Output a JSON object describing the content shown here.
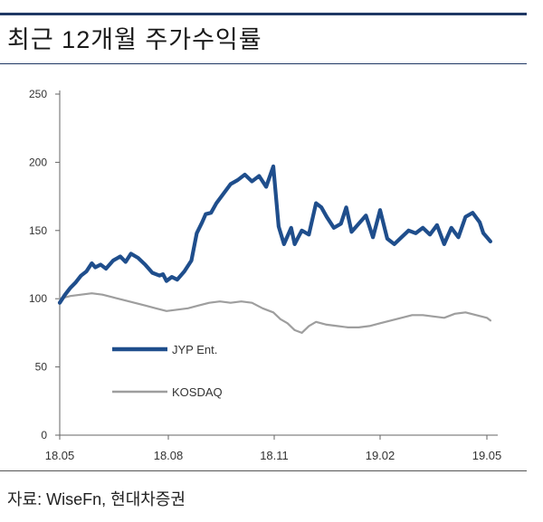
{
  "title": "최근 12개월 주가수익률",
  "source": "자료: WiseFn, 현대차증권",
  "chart_data": {
    "type": "line",
    "title": "최근 12개월 주가수익률",
    "x_ticks": [
      "18.05",
      "18.08",
      "18.11",
      "19.02",
      "19.05"
    ],
    "y_ticks": [
      0,
      50,
      100,
      150,
      200,
      250
    ],
    "ylim": [
      0,
      250
    ],
    "xlim": [
      0,
      12.1
    ],
    "grid": false,
    "legend_position": "lower-left (inside plot)",
    "series": [
      {
        "name": "JYP Ent.",
        "color": "#1f4e8c",
        "x": [
          0,
          0.15,
          0.3,
          0.45,
          0.6,
          0.75,
          0.9,
          1.0,
          1.15,
          1.3,
          1.5,
          1.7,
          1.85,
          2.0,
          2.2,
          2.4,
          2.6,
          2.8,
          2.9,
          3.0,
          3.15,
          3.3,
          3.5,
          3.7,
          3.85,
          4.0,
          4.1,
          4.25,
          4.4,
          4.6,
          4.8,
          5.0,
          5.2,
          5.4,
          5.6,
          5.8,
          6.0,
          6.15,
          6.3,
          6.5,
          6.6,
          6.7,
          6.8,
          7.0,
          7.2,
          7.35,
          7.5,
          7.7,
          7.9,
          8.05,
          8.2,
          8.4,
          8.6,
          8.8,
          9.0,
          9.2,
          9.4,
          9.6,
          9.8,
          10.0,
          10.2,
          10.4,
          10.6,
          10.8,
          11.0,
          11.2,
          11.4,
          11.6,
          11.8,
          11.9,
          12.0,
          12.1
        ],
        "values": [
          97,
          103,
          108,
          112,
          117,
          120,
          126,
          123,
          125,
          122,
          128,
          131,
          127,
          133,
          130,
          125,
          119,
          117,
          118,
          113,
          116,
          114,
          120,
          128,
          148,
          156,
          162,
          163,
          170,
          177,
          184,
          187,
          191,
          186,
          190,
          182,
          197,
          153,
          140,
          152,
          140,
          145,
          150,
          147,
          170,
          167,
          160,
          152,
          155,
          167,
          149,
          155,
          161,
          145,
          165,
          144,
          140,
          145,
          150,
          148,
          152,
          147,
          154,
          140,
          152,
          145,
          160,
          163,
          156,
          148,
          145,
          142
        ]
      },
      {
        "name": "KOSDAQ",
        "color": "#9e9e9e",
        "x": [
          0,
          0.3,
          0.6,
          0.9,
          1.2,
          1.5,
          1.8,
          2.1,
          2.4,
          2.7,
          3.0,
          3.3,
          3.6,
          3.9,
          4.2,
          4.5,
          4.8,
          5.1,
          5.4,
          5.7,
          6.0,
          6.2,
          6.4,
          6.6,
          6.8,
          7.0,
          7.2,
          7.5,
          7.8,
          8.1,
          8.4,
          8.7,
          9.0,
          9.3,
          9.6,
          9.9,
          10.2,
          10.5,
          10.8,
          11.1,
          11.4,
          11.7,
          12.0,
          12.1
        ],
        "values": [
          100,
          102,
          103,
          104,
          103,
          101,
          99,
          97,
          95,
          93,
          91,
          92,
          93,
          95,
          97,
          98,
          97,
          98,
          97,
          93,
          90,
          85,
          82,
          77,
          75,
          80,
          83,
          81,
          80,
          79,
          79,
          80,
          82,
          84,
          86,
          88,
          88,
          87,
          86,
          89,
          90,
          88,
          86,
          84
        ]
      }
    ]
  }
}
